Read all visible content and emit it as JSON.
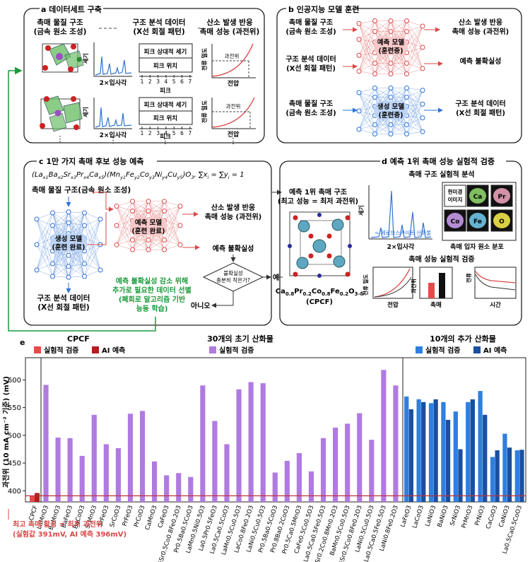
{
  "panel_a": {
    "title": "a 데이터세트 구축",
    "col1": [
      "촉매 물질 구조",
      "(금속 원소 조성)"
    ],
    "col2": [
      "구조 분석 데이터",
      "(X선 회절 패턴)"
    ],
    "col3": [
      "산소 발생 반응",
      "촉매 성능 (과전위)"
    ],
    "xrd_ylabel": "세기",
    "xrd_xlabel": "2×입사각",
    "peak_intensity": "피크 상대적 세기",
    "peak_position": "피크 위치",
    "peak_label": "피크",
    "peak_ticks": [
      "1",
      "2",
      "3",
      "4",
      "5",
      "6",
      "7"
    ],
    "overpotential": "과전위",
    "current_density": "전류 밀도",
    "voltage": "전압",
    "ellipsis": "⋮"
  },
  "panel_b": {
    "title": "b 인공지능 모델 훈련",
    "in1": [
      "촉매 물질 구조",
      "(금속 원소 조성)"
    ],
    "in2": [
      "구조 분석 데이터",
      "(X선 회절 패턴)"
    ],
    "in3": [
      "촉매 물질 구조",
      "(금속 원소 조성)"
    ],
    "pred_model": [
      "예측 모델",
      "(훈련중)"
    ],
    "gen_model": [
      "생성 모델",
      "(훈련중)"
    ],
    "out1": [
      "산소 발생 반응",
      "촉매 성능 (과전위)"
    ],
    "out2": "예측 불확실성",
    "out3": [
      "구조 분석 데이터",
      "(X선 회절 패턴)"
    ]
  },
  "panel_c": {
    "title": "c 1만 가지 촉매 후보 성능 예측",
    "formula": "(La x1 Ba x2 Sr x3 Pr x4 Ca x5 )(Mn y1 Fe y2 Co y3 Ni y4 Cu y5 )O 3 ,  ∑x i = ∑y i = 1",
    "structure": "촉매 물질 구조(금속 원소 조성)",
    "gen_model": [
      "생성 모델",
      "(훈련 완료)"
    ],
    "pred_model": [
      "예측 모델",
      "(훈련 완료)"
    ],
    "perf": [
      "산소 발생 반응",
      "촉매 성능 (과전위)"
    ],
    "uncert": "예측 불확실성",
    "decision": [
      "불확실성",
      "충분히 작은가?"
    ],
    "yes": "예",
    "no": "아니오",
    "xrd": [
      "구조 분석 데이터",
      "(X선 회절 패턴)"
    ],
    "active": [
      "예측 불확실성 감소 위해",
      "추가로 필요한 데이터 선별",
      "(폐회로 알고리즘 기반",
      "능동 학습)"
    ]
  },
  "panel_d": {
    "title": "d 예측 1위 촉매 성능 실험적 검증",
    "top_catalyst": [
      "예측 1위 촉매 구조",
      "(최고 성능 = 최저 과전위)"
    ],
    "formula": "Ca0.8Pr0.2Co0.8Fe0.2O3-δ",
    "cpcf": "(CPCF)",
    "struct_title": "촉매 구조 실험적 분석",
    "xrd_ylabel": "세기",
    "xrd_note": "= 페로브스카이트 산화물",
    "xrd_xlabel": "2×입사각",
    "microscope": [
      "현미경",
      "이미지"
    ],
    "elements": [
      "Ca",
      "Pr",
      "Co",
      "Fe",
      "O"
    ],
    "element_colors": [
      "#8dd26a",
      "#e8a0b8",
      "#c79ae8",
      "#6fc3e8",
      "#f0e64a"
    ],
    "particle": "촉매 입자 원소 분포",
    "perf_title": "촉매 성능 실험적 검증",
    "current_density": "전류 밀도",
    "voltage": "전압",
    "overpotential": "과전위",
    "catalyst": "촉매",
    "stability": "전류",
    "time": "시간"
  },
  "panel_e": {
    "title": "e",
    "group1": "CPCF",
    "group2": "30개의 초기 산화물",
    "group3": "10개의 추가 산화물",
    "legend_exp": "실험적 검증",
    "legend_ai": "AI 예측",
    "ylabel": "과전위 (10 mA cm⁻² 기준) (mV)",
    "footnote": [
      "최고 촉매 활성 = 최저 과전위",
      "(실험값 391mV, AI 예측 396mV)"
    ],
    "colors": {
      "cpcf_exp": "#e84a4a",
      "cpcf_ai": "#b31e1e",
      "init": "#b07be0",
      "add_exp": "#2e7fe0",
      "add_ai": "#1a4fa0",
      "refline": "#c0303a"
    }
  },
  "chart_data": {
    "type": "bar",
    "ylabel": "과전위 (10 mA cm⁻² 기준) (mV)",
    "ylim": [
      380,
      640
    ],
    "yticks": [
      400,
      450,
      500,
      550,
      600
    ],
    "reference_line": 391,
    "cpcf": {
      "name": "CPCF",
      "experimental": 391,
      "ai": 396
    },
    "initial": {
      "labels": [
        "LaMnO3",
        "BaMnO3",
        "BaFeO3",
        "BaCoO3",
        "SrMnO3",
        "SrFeO3",
        "SrCoO3",
        "PrFeO3",
        "PrCoO3",
        "CaMnO3",
        "CaFeO3",
        "Ba0.5Sr0.5Co0.8Fe0.2O3",
        "Pr0.5Ba0.5CoO3",
        "LaMn0.5Ni0.5O3",
        "La0.5Pr0.5FeO3",
        "La0.5Ca0.5CoO3",
        "LaMn0.5Cu0.5O3",
        "LaCo0.8Fe0.2O3",
        "LaNi0.5Cu0.5O3",
        "Pr0.5Ba0.5CoO3",
        "Pr0.8Ba0.2CoO3",
        "Pr0.5Ca0.5MnO3",
        "CaFe0.5Co0.5O3",
        "La0.5Ca0.5Fe0.5O3",
        "La0.8Sr0.2Co0.8Mn0.2O3",
        "BaMn0.5Co0.5O3",
        "La0.5Sr0.5Co0.8Fe0.2O3",
        "LaNi0.5Cu0.5O3",
        "La0.5Ca0.5Fe0.5O3",
        "LaNi0.8Fe0.2O3"
      ],
      "values": [
        591,
        496,
        495,
        463,
        537,
        484,
        477,
        539,
        544,
        453,
        428,
        432,
        425,
        590,
        526,
        484,
        583,
        596,
        594,
        433,
        454,
        468,
        435,
        495,
        514,
        521,
        540,
        492,
        618,
        590
      ]
    },
    "additional": {
      "labels": [
        "LaFeO3",
        "LaCoO3",
        "LaNiO3",
        "BaNiO3",
        "SrNiO3",
        "PrMnO3",
        "PrNiO3",
        "CaCoO3",
        "CaNiO3",
        "La0.5Ca0.5CoO3"
      ],
      "experimental": [
        570,
        565,
        558,
        560,
        543,
        560,
        580,
        461,
        503,
        473
      ],
      "ai": [
        547,
        560,
        565,
        528,
        475,
        565,
        537,
        473,
        478,
        474
      ]
    }
  }
}
